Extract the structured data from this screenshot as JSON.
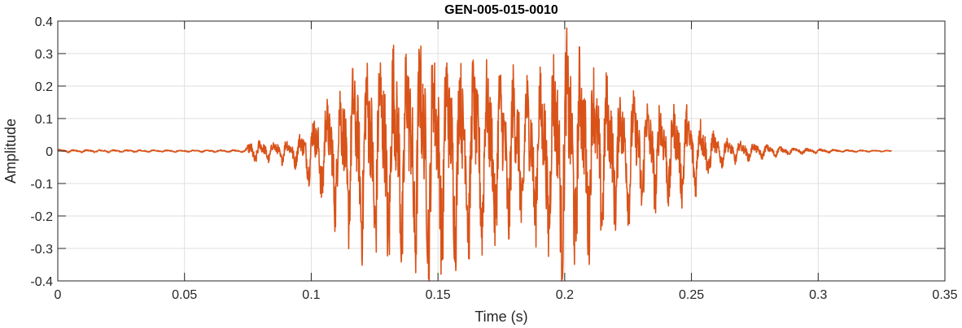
{
  "chart_data": {
    "type": "line",
    "title": "GEN-005-015-0010",
    "xlabel": "Time (s)",
    "ylabel": "Amplitude",
    "xlim": [
      0,
      0.35
    ],
    "ylim": [
      -0.4,
      0.4
    ],
    "xticks": [
      0,
      0.05,
      0.1,
      0.15,
      0.2,
      0.25,
      0.3,
      0.35
    ],
    "xtick_labels": [
      "0",
      "0.05",
      "0.1",
      "0.15",
      "0.2",
      "0.25",
      "0.3",
      "0.35"
    ],
    "yticks": [
      -0.4,
      -0.3,
      -0.2,
      -0.1,
      0,
      0.1,
      0.2,
      0.3,
      0.4
    ],
    "ytick_labels": [
      "-0.4",
      "-0.3",
      "-0.2",
      "-0.1",
      "0",
      "0.1",
      "0.2",
      "0.3",
      "0.4"
    ],
    "grid": true,
    "series_color": "#D95319",
    "series": [
      {
        "x_start": 0,
        "x_end": 0.329,
        "envelope": [
          [
            0,
            0.005
          ],
          [
            0.02,
            0.004
          ],
          [
            0.05,
            0.003
          ],
          [
            0.074,
            0.004
          ],
          [
            0.076,
            0.04
          ],
          [
            0.085,
            0.03
          ],
          [
            0.095,
            0.05
          ],
          [
            0.1,
            0.1
          ],
          [
            0.11,
            0.22
          ],
          [
            0.12,
            0.3
          ],
          [
            0.13,
            0.34
          ],
          [
            0.14,
            0.37
          ],
          [
            0.15,
            0.35
          ],
          [
            0.16,
            0.31
          ],
          [
            0.17,
            0.28
          ],
          [
            0.18,
            0.27
          ],
          [
            0.19,
            0.26
          ],
          [
            0.2,
            0.38
          ],
          [
            0.21,
            0.3
          ],
          [
            0.22,
            0.22
          ],
          [
            0.23,
            0.18
          ],
          [
            0.24,
            0.16
          ],
          [
            0.25,
            0.14
          ],
          [
            0.26,
            0.05
          ],
          [
            0.27,
            0.03
          ],
          [
            0.29,
            0.01
          ],
          [
            0.31,
            0.004
          ],
          [
            0.329,
            0.002
          ]
        ]
      }
    ]
  }
}
